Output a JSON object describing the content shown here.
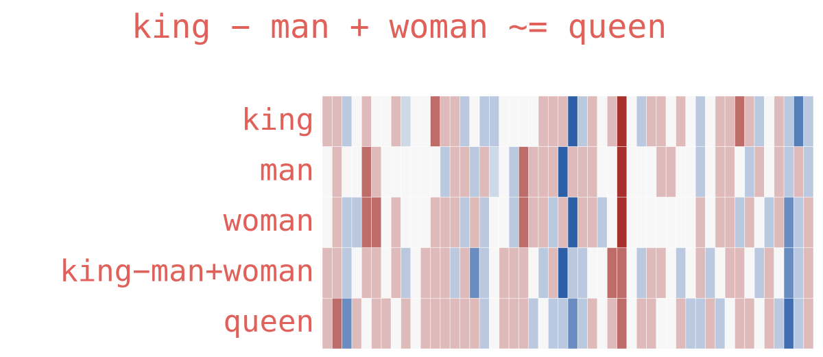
{
  "chart_data": {
    "type": "heatmap",
    "title": "king − man + woman ~= queen",
    "rows": [
      "king",
      "man",
      "woman",
      "king−man+woman",
      "queen"
    ],
    "vlim": [
      -1,
      1
    ],
    "colors": [
      "#2c5fa8",
      "#f7f7f7",
      "#a5302c"
    ],
    "label_color": "#e0605a",
    "values": [
      [
        0.3,
        0.3,
        -0.3,
        0,
        0.3,
        0,
        0,
        0.3,
        -0.2,
        0,
        0,
        0.7,
        0.3,
        0.3,
        -0.3,
        0,
        -0.3,
        -0.3,
        0,
        0,
        0,
        0,
        0.3,
        0.3,
        0.3,
        -1,
        -0.3,
        0.3,
        0,
        0.3,
        1,
        0,
        -0.3,
        0.3,
        0.3,
        0,
        0.3,
        0,
        -0.3,
        0,
        0.3,
        0.3,
        0.7,
        0.3,
        -0.3,
        0,
        0.3,
        -0.3,
        -0.8,
        -0.3
      ],
      [
        0,
        0.3,
        0,
        0,
        0.7,
        0.3,
        0,
        0,
        0,
        0,
        0,
        0,
        -0.3,
        0.3,
        0.3,
        -0.3,
        0.3,
        -0.2,
        0,
        -0.3,
        0.7,
        0.3,
        0.3,
        0.3,
        -1,
        0.3,
        0.3,
        0.3,
        0,
        0,
        1,
        0,
        0,
        0,
        0.3,
        0.3,
        0,
        0,
        -0.3,
        0,
        0.3,
        0.3,
        0,
        -0.3,
        0.3,
        0,
        0.3,
        -0.3,
        0.3,
        -0.3
      ],
      [
        0,
        0.3,
        -0.3,
        -0.3,
        0.7,
        0.7,
        0,
        0.3,
        0,
        0,
        0,
        0.3,
        0.3,
        0.3,
        -0.3,
        0.3,
        -0.3,
        0,
        0,
        -0.3,
        0.7,
        0.3,
        0.3,
        -0.3,
        0.3,
        -1,
        0.3,
        0.3,
        -0.3,
        0,
        1,
        0,
        0,
        0,
        0,
        0,
        0,
        0,
        0.3,
        0,
        0.3,
        0.3,
        -0.3,
        0.3,
        0,
        -0.3,
        0.3,
        -0.7,
        -0.3,
        0.3
      ],
      [
        0.3,
        0.3,
        -0.3,
        0,
        0.3,
        0.3,
        0,
        0.3,
        -0.3,
        0,
        0.3,
        0.3,
        0.3,
        -0.3,
        0.3,
        -0.7,
        -0.3,
        0,
        0.3,
        0.3,
        0.3,
        0,
        -0.3,
        0.3,
        -1,
        -0.3,
        -0.3,
        0,
        0,
        0.7,
        0.7,
        0,
        -0.3,
        0.3,
        0.3,
        0,
        -0.3,
        0,
        0.3,
        -0.3,
        0,
        0.3,
        0.3,
        0,
        -0.3,
        0.3,
        0,
        -0.7,
        -0.3,
        0.3
      ],
      [
        0.3,
        0.7,
        -0.7,
        0.3,
        0,
        0.3,
        0.3,
        0,
        0.3,
        0,
        0.3,
        0.3,
        0.3,
        0.3,
        0.3,
        0.3,
        -0.3,
        0,
        0.3,
        0.3,
        0.3,
        -0.3,
        0,
        -0.3,
        -0.3,
        -0.7,
        -0.3,
        0.3,
        0,
        0.3,
        0.7,
        0,
        0.3,
        0.3,
        0,
        0,
        0.3,
        -0.3,
        -0.3,
        0.3,
        -0.3,
        0,
        0.3,
        0.3,
        0,
        0.3,
        -0.3,
        -0.9,
        -0.3,
        0.3
      ]
    ]
  }
}
